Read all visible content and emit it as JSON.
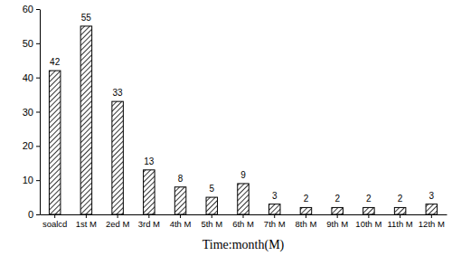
{
  "chart_data": {
    "type": "bar",
    "xlabel": "Time:month(M)",
    "categories": [
      "soalcd",
      "1st M",
      "2ed M",
      "3rd M",
      "4th M",
      "5th M",
      "6th M",
      "7th M",
      "8th M",
      "9th M",
      "10th M",
      "11th M",
      "12th M"
    ],
    "values": [
      42,
      55,
      33,
      13,
      8,
      5,
      9,
      3,
      2,
      2,
      2,
      2,
      3
    ],
    "color": "#000000",
    "ylim": [
      0,
      60
    ],
    "yticks": [
      0,
      10,
      20,
      30,
      40,
      50,
      60
    ],
    "data_labels": true,
    "grid": false
  }
}
